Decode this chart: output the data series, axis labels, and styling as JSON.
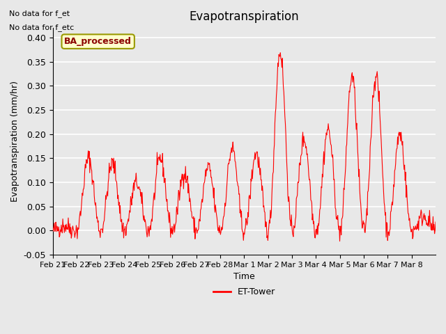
{
  "title": "Evapotranspiration",
  "ylabel": "Evapotranspiration (mm/hr)",
  "xlabel": "Time",
  "ylim": [
    -0.05,
    0.42
  ],
  "annotations": [
    "No data for f_et",
    "No data for f_etc"
  ],
  "legend_label": "ET-Tower",
  "legend_color": "#ff0000",
  "box_label": "BA_processed",
  "box_facecolor": "#ffffcc",
  "box_edgecolor": "#999900",
  "background_color": "#e8e8e8",
  "line_color": "#ff0000",
  "xtick_labels": [
    "Feb 21",
    "Feb 22",
    "Feb 23",
    "Feb 24",
    "Feb 25",
    "Feb 26",
    "Feb 27",
    "Feb 28",
    "Mar 1",
    "Mar 2",
    "Mar 3",
    "Mar 4",
    "Mar 5",
    "Mar 6",
    "Mar 7",
    "Mar 8"
  ],
  "ytick_values": [
    -0.05,
    0.0,
    0.05,
    0.1,
    0.15,
    0.2,
    0.25,
    0.3,
    0.35,
    0.4
  ],
  "n_days": 16,
  "pts_per_day": 48,
  "seed": 42,
  "day_amplitudes": [
    0.01,
    0.15,
    0.14,
    0.1,
    0.15,
    0.12,
    0.13,
    0.17,
    0.16,
    0.37,
    0.19,
    0.21,
    0.32,
    0.32,
    0.2,
    0.03
  ]
}
